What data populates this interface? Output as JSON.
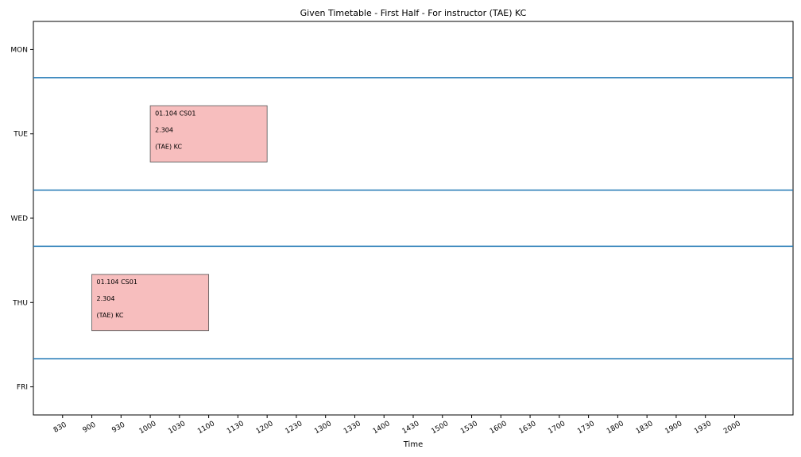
{
  "chart_data": {
    "type": "timetable",
    "title": "Given Timetable - First Half - For instructor (TAE) KC",
    "xlabel": "Time",
    "ylabel": "",
    "xlim": [
      800,
      2100
    ],
    "x_ticks": [
      "830",
      "900",
      "930",
      "1000",
      "1030",
      "1100",
      "1130",
      "1200",
      "1230",
      "1300",
      "1330",
      "1400",
      "1430",
      "1500",
      "1530",
      "1600",
      "1630",
      "1700",
      "1730",
      "1800",
      "1830",
      "1900",
      "1930",
      "2000"
    ],
    "days": [
      "MON",
      "TUE",
      "WED",
      "THU",
      "FRI"
    ],
    "events": [
      {
        "day": "TUE",
        "start": "1000",
        "end": "1200",
        "lines": [
          "01.104 CS01",
          "2.304",
          "(TAE) KC"
        ]
      },
      {
        "day": "THU",
        "start": "900",
        "end": "1100",
        "lines": [
          "01.104 CS01",
          "2.304",
          "(TAE) KC"
        ]
      }
    ],
    "grid": false,
    "colors": {
      "event_fill": "#f7bebe",
      "event_border": "#555555",
      "separator": "#1f77b4",
      "axis": "#000000"
    }
  }
}
